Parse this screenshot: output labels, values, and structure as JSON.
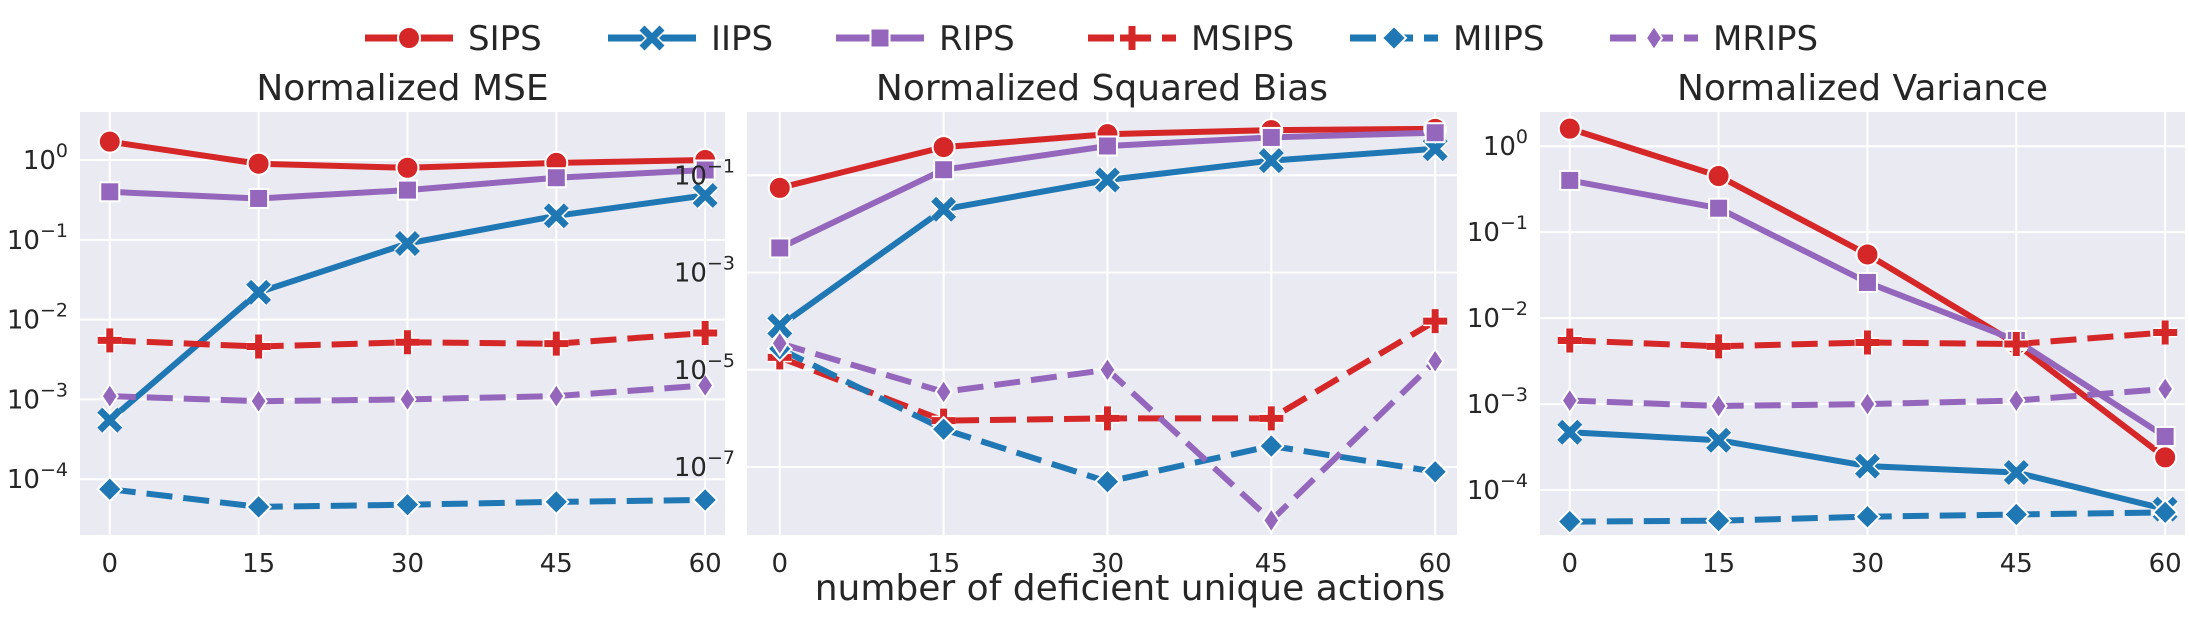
{
  "legend": [
    {
      "name": "SIPS",
      "color": "#d62728",
      "dash": "solid",
      "marker": "circle"
    },
    {
      "name": "IIPS",
      "color": "#1f77b4",
      "dash": "solid",
      "marker": "x"
    },
    {
      "name": "RIPS",
      "color": "#9467bd",
      "dash": "solid",
      "marker": "square"
    },
    {
      "name": "MSIPS",
      "color": "#d62728",
      "dash": "dashed",
      "marker": "plus"
    },
    {
      "name": "MIIPS",
      "color": "#1f77b4",
      "dash": "dashed",
      "marker": "diamond"
    },
    {
      "name": "MRIPS",
      "color": "#9467bd",
      "dash": "dashed",
      "marker": "thin-diamond"
    }
  ],
  "xlabel": "number of deficient unique actions",
  "chart_data": [
    {
      "type": "line",
      "title": "Normalized MSE",
      "yscale": "log",
      "ylim": [
        2e-05,
        4
      ],
      "yticks": [
        0.0001,
        0.001,
        0.01,
        0.1,
        1
      ],
      "ytick_labels": [
        [
          "10",
          "−4"
        ],
        [
          "10",
          "−3"
        ],
        [
          "10",
          "−2"
        ],
        [
          "10",
          "−1"
        ],
        [
          "10",
          "0"
        ]
      ],
      "x": [
        0,
        15,
        30,
        45,
        60
      ],
      "xlim": [
        -3,
        62
      ],
      "grid": true,
      "series": [
        {
          "name": "SIPS",
          "values": [
            1.7,
            0.9,
            0.8,
            0.92,
            1.0
          ]
        },
        {
          "name": "IIPS",
          "values": [
            0.00055,
            0.022,
            0.09,
            0.2,
            0.36
          ]
        },
        {
          "name": "RIPS",
          "values": [
            0.4,
            0.33,
            0.42,
            0.6,
            0.75
          ]
        },
        {
          "name": "MSIPS",
          "values": [
            0.0055,
            0.0046,
            0.0052,
            0.005,
            0.0068
          ]
        },
        {
          "name": "MIIPS",
          "values": [
            7.5e-05,
            4.5e-05,
            4.8e-05,
            5.2e-05,
            5.5e-05
          ]
        },
        {
          "name": "MRIPS",
          "values": [
            0.0011,
            0.00095,
            0.001,
            0.0011,
            0.0015
          ]
        }
      ]
    },
    {
      "type": "line",
      "title": "Normalized Squared Bias",
      "yscale": "log",
      "ylim": [
        4e-09,
        2
      ],
      "yticks": [
        1e-07,
        1e-05,
        0.001,
        0.1
      ],
      "ytick_labels": [
        [
          "10",
          "−7"
        ],
        [
          "10",
          "−5"
        ],
        [
          "10",
          "−3"
        ],
        [
          "10",
          "−1"
        ]
      ],
      "x": [
        0,
        15,
        30,
        45,
        60
      ],
      "xlim": [
        -3,
        62
      ],
      "grid": true,
      "series": [
        {
          "name": "SIPS",
          "values": [
            0.055,
            0.38,
            0.7,
            0.85,
            0.9
          ]
        },
        {
          "name": "IIPS",
          "values": [
            8e-05,
            0.02,
            0.08,
            0.2,
            0.35
          ]
        },
        {
          "name": "RIPS",
          "values": [
            0.0032,
            0.13,
            0.4,
            0.6,
            0.75
          ]
        },
        {
          "name": "MSIPS",
          "values": [
            1.8e-05,
            9e-07,
            1e-06,
            1e-06,
            0.0001
          ]
        },
        {
          "name": "MIIPS",
          "values": [
            2.7e-05,
            6e-07,
            5e-08,
            2.7e-07,
            8e-08
          ]
        },
        {
          "name": "MRIPS",
          "values": [
            3.5e-05,
            3.5e-06,
            1e-05,
            8e-09,
            1.5e-05
          ]
        }
      ]
    },
    {
      "type": "line",
      "title": "Normalized Variance",
      "yscale": "log",
      "ylim": [
        3e-05,
        2.5
      ],
      "yticks": [
        0.0001,
        0.001,
        0.01,
        0.1,
        1
      ],
      "ytick_labels": [
        [
          "10",
          "−4"
        ],
        [
          "10",
          "−3"
        ],
        [
          "10",
          "−2"
        ],
        [
          "10",
          "−1"
        ],
        [
          "10",
          "0"
        ]
      ],
      "x": [
        0,
        15,
        30,
        45,
        60
      ],
      "xlim": [
        -3,
        62
      ],
      "grid": true,
      "series": [
        {
          "name": "SIPS",
          "values": [
            1.6,
            0.45,
            0.055,
            0.005,
            0.00024
          ]
        },
        {
          "name": "IIPS",
          "values": [
            0.00047,
            0.00038,
            0.00019,
            0.00016,
            6e-05
          ]
        },
        {
          "name": "RIPS",
          "values": [
            0.4,
            0.19,
            0.026,
            0.0055,
            0.00042
          ]
        },
        {
          "name": "MSIPS",
          "values": [
            0.0055,
            0.0047,
            0.0052,
            0.005,
            0.0068
          ]
        },
        {
          "name": "MIIPS",
          "values": [
            4.3e-05,
            4.4e-05,
            4.9e-05,
            5.2e-05,
            5.5e-05
          ]
        },
        {
          "name": "MRIPS",
          "values": [
            0.0011,
            0.00095,
            0.001,
            0.0011,
            0.0015
          ]
        }
      ]
    }
  ]
}
